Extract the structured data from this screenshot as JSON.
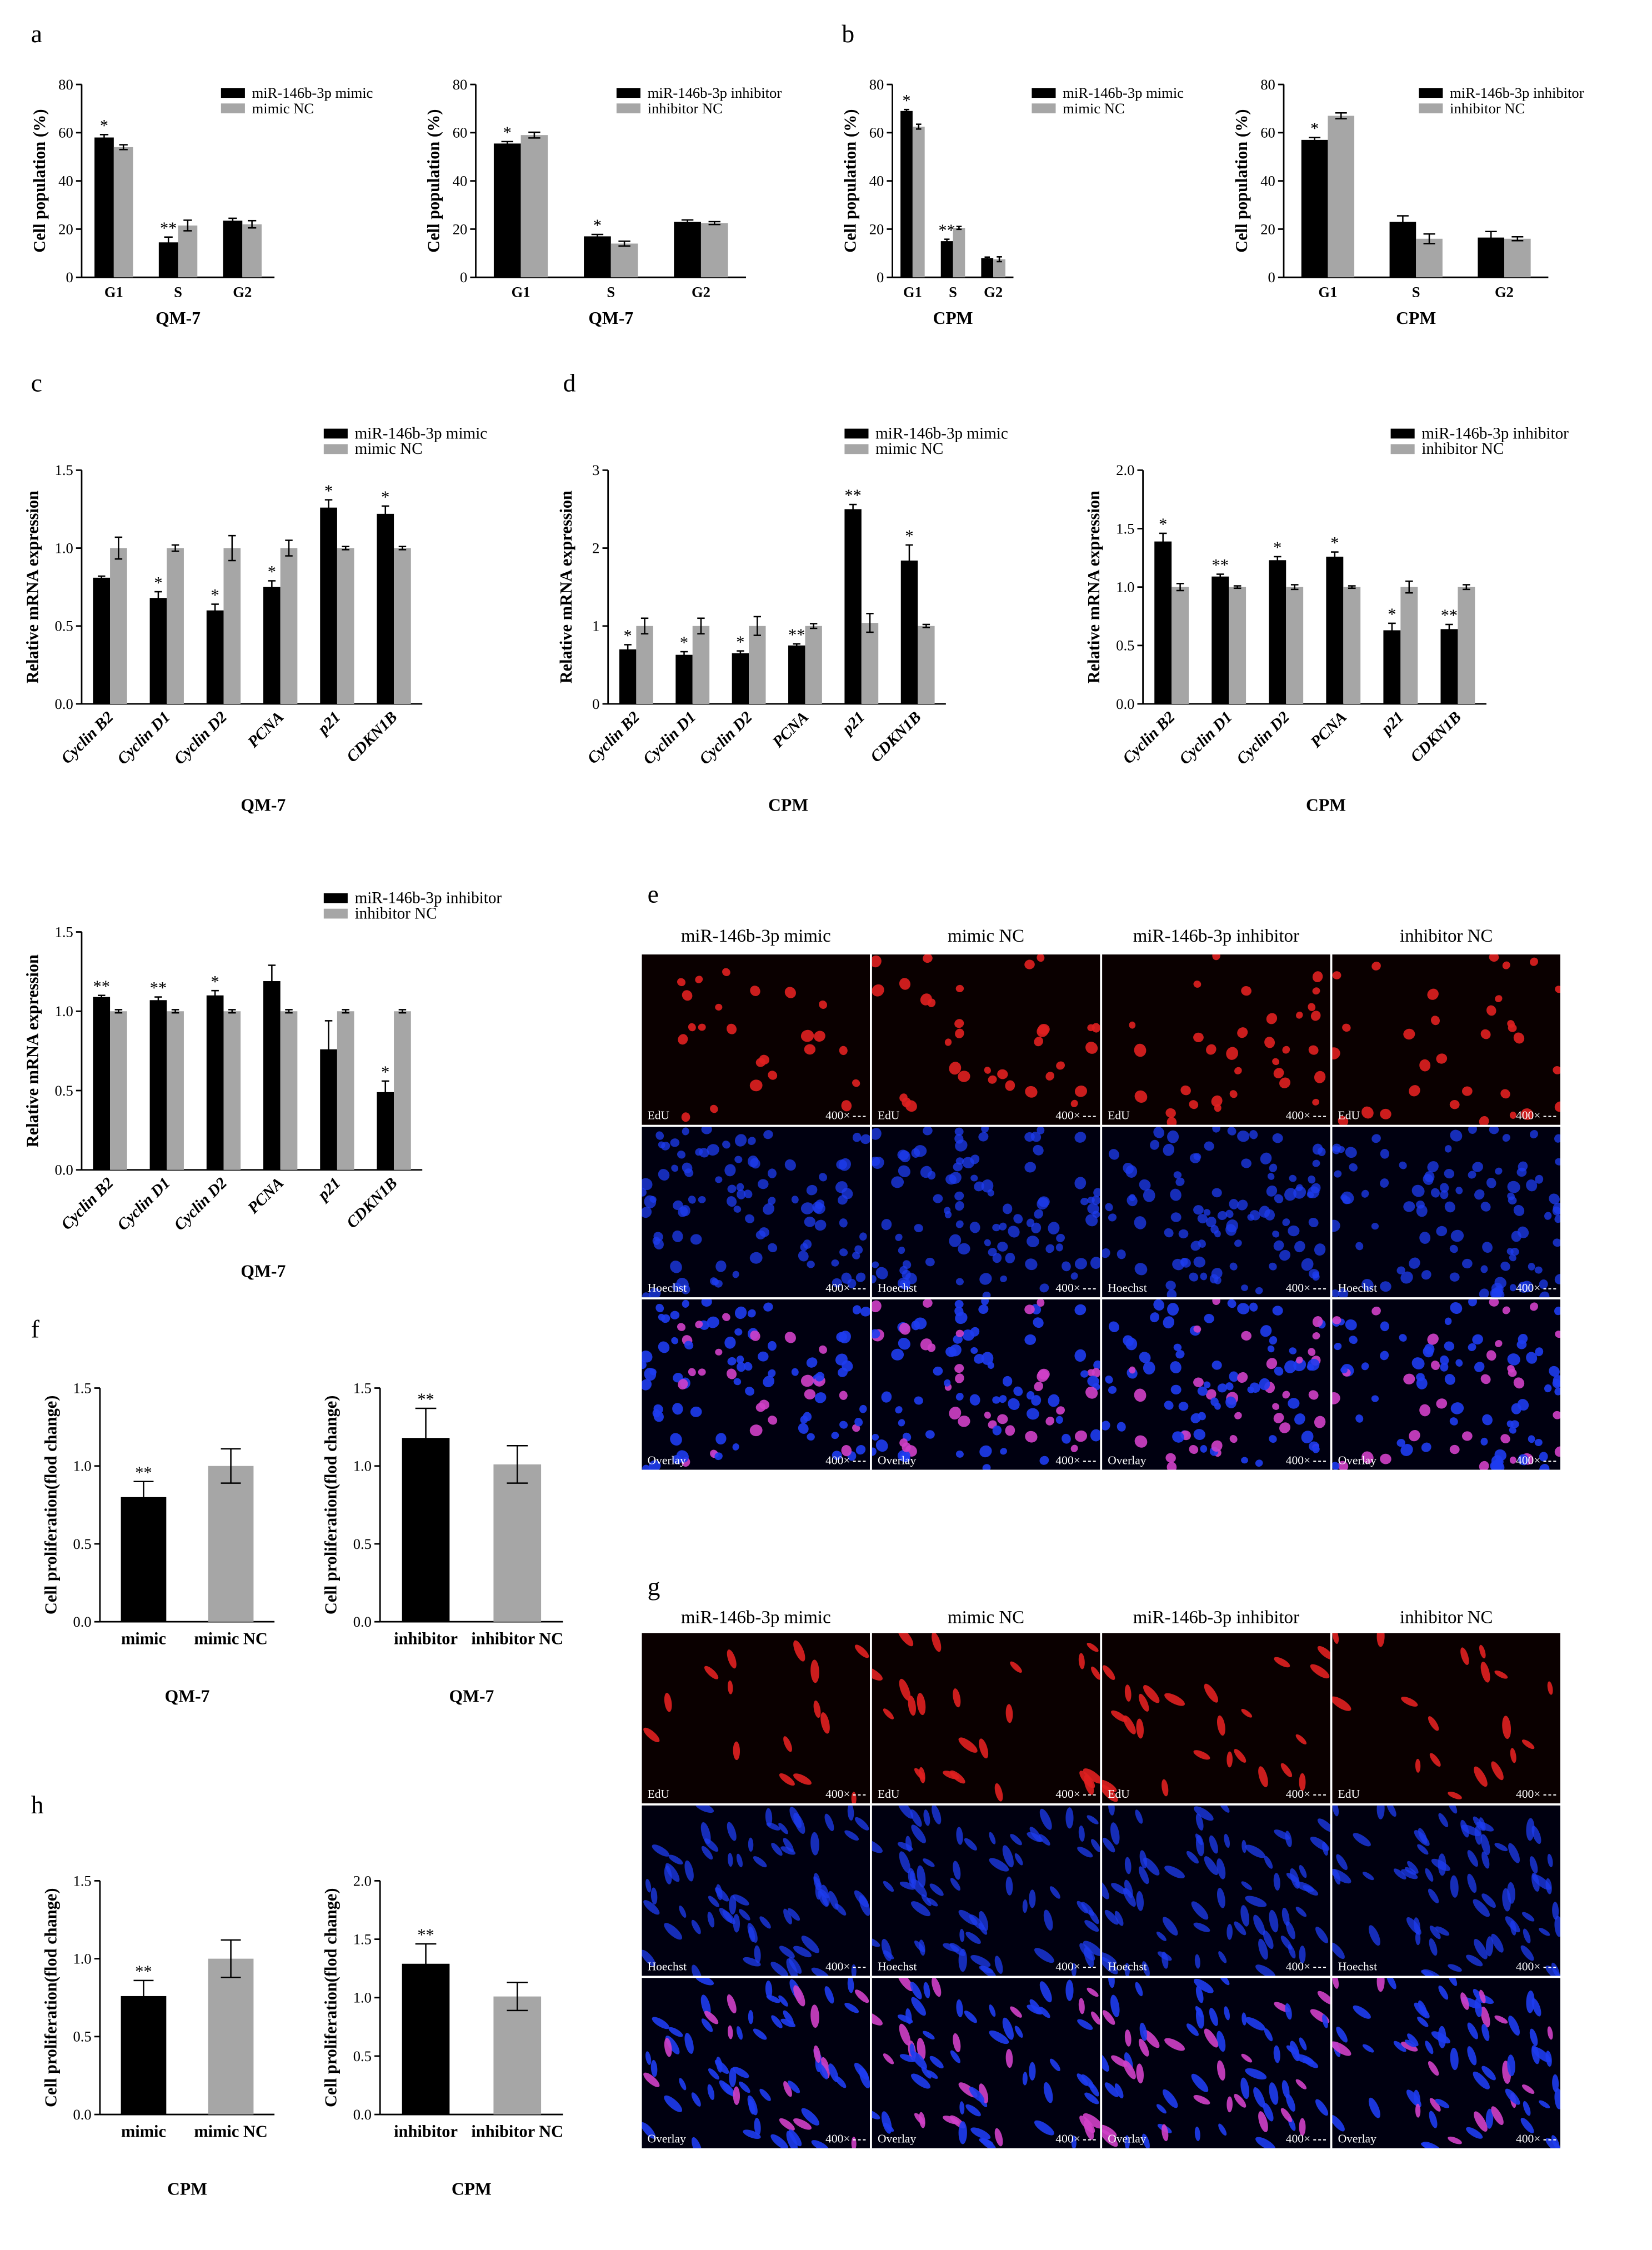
{
  "panel_labels": [
    "a",
    "b",
    "c",
    "d",
    "e",
    "f",
    "g",
    "h"
  ],
  "colors": {
    "treatment": "#000000",
    "control": "#a6a6a6",
    "axis": "#000000",
    "edu": "#e02020",
    "hoechst": "#1e3cf0",
    "overlay_nucleus": "#d040c8"
  },
  "chart_data": [
    {
      "id": "a1",
      "type": "bar",
      "ylabel": "Cell population (%)",
      "xlabel": "QM-7",
      "ylim": [
        0,
        80
      ],
      "yticks": [
        "0",
        "20",
        "40",
        "60",
        "80"
      ],
      "categories": [
        "G1",
        "S",
        "G2"
      ],
      "legend_placement": "top-right",
      "series": [
        {
          "name": "miR-146b-3p mimic",
          "color": "#000000",
          "values": [
            58,
            14.5,
            23.5
          ],
          "errors": [
            1.2,
            2.2,
            1.0
          ],
          "sig": [
            "*",
            "**",
            ""
          ]
        },
        {
          "name": "mimic NC",
          "color": "#a6a6a6",
          "values": [
            54,
            21.5,
            22
          ],
          "errors": [
            1.0,
            2.2,
            1.5
          ],
          "sig": [
            "",
            "",
            ""
          ]
        }
      ]
    },
    {
      "id": "a2",
      "type": "bar",
      "ylabel": "Cell population (%)",
      "xlabel": "QM-7",
      "ylim": [
        0,
        80
      ],
      "yticks": [
        "0",
        "20",
        "40",
        "60",
        "80"
      ],
      "categories": [
        "G1",
        "S",
        "G2"
      ],
      "legend_placement": "top-right",
      "series": [
        {
          "name": "miR-146b-3p inhibitor",
          "color": "#000000",
          "values": [
            55.5,
            17,
            23
          ],
          "errors": [
            0.8,
            0.8,
            0.8
          ],
          "sig": [
            "*",
            "*",
            ""
          ]
        },
        {
          "name": "inhibitor NC",
          "color": "#a6a6a6",
          "values": [
            59,
            14,
            22.5
          ],
          "errors": [
            1.2,
            1.0,
            0.6
          ],
          "sig": [
            "",
            "",
            ""
          ]
        }
      ]
    },
    {
      "id": "b1",
      "type": "bar",
      "ylabel": "Cell population (%)",
      "xlabel": "CPM",
      "ylim": [
        0,
        80
      ],
      "yticks": [
        "0",
        "20",
        "40",
        "60",
        "80"
      ],
      "categories": [
        "G1",
        "S",
        "G2"
      ],
      "legend_placement": "top-right",
      "series": [
        {
          "name": "miR-146b-3p mimic",
          "color": "#000000",
          "values": [
            69,
            15,
            8
          ],
          "errors": [
            0.6,
            0.8,
            0.4
          ],
          "sig": [
            "*",
            "**",
            ""
          ]
        },
        {
          "name": "mimic NC",
          "color": "#a6a6a6",
          "values": [
            62.5,
            20.5,
            7.5
          ],
          "errors": [
            1.0,
            0.6,
            1.0
          ],
          "sig": [
            "",
            "",
            ""
          ]
        }
      ]
    },
    {
      "id": "b2",
      "type": "bar",
      "ylabel": "Cell population (%)",
      "xlabel": "CPM",
      "ylim": [
        0,
        80
      ],
      "yticks": [
        "0",
        "20",
        "40",
        "60",
        "80"
      ],
      "categories": [
        "G1",
        "S",
        "G2"
      ],
      "legend_placement": "top-right",
      "series": [
        {
          "name": "miR-146b-3p inhibitor",
          "color": "#000000",
          "values": [
            57,
            23,
            16.5
          ],
          "errors": [
            1.0,
            2.5,
            2.5
          ],
          "sig": [
            "*",
            "",
            ""
          ]
        },
        {
          "name": "inhibitor NC",
          "color": "#a6a6a6",
          "values": [
            67,
            16,
            16
          ],
          "errors": [
            1.2,
            2.0,
            0.8
          ],
          "sig": [
            "",
            "",
            ""
          ]
        }
      ]
    },
    {
      "id": "c1",
      "type": "bar",
      "ylabel": "Relative mRNA expression",
      "xlabel": "QM-7",
      "ylim": [
        0,
        1.5
      ],
      "yticks": [
        "0.0",
        "0.5",
        "1.0",
        "1.5"
      ],
      "categories": [
        "Cyclin B2",
        "Cyclin D1",
        "Cyclin D2",
        "PCNA",
        "p21",
        "CDKN1B"
      ],
      "italic_categories": true,
      "legend_placement": "top-right",
      "series": [
        {
          "name": "miR-146b-3p mimic",
          "color": "#000000",
          "values": [
            0.81,
            0.68,
            0.6,
            0.75,
            1.26,
            1.22
          ],
          "errors": [
            0.01,
            0.04,
            0.04,
            0.04,
            0.05,
            0.05
          ],
          "sig": [
            "",
            "*",
            "*",
            "*",
            "*",
            "*"
          ]
        },
        {
          "name": "mimic NC",
          "color": "#a6a6a6",
          "values": [
            1.0,
            1.0,
            1.0,
            1.0,
            1.0,
            1.0
          ],
          "errors": [
            0.07,
            0.02,
            0.08,
            0.05,
            0.01,
            0.01
          ],
          "sig": [
            "",
            "",
            "",
            "",
            "",
            ""
          ]
        }
      ]
    },
    {
      "id": "c2",
      "type": "bar",
      "ylabel": "Relative mRNA expression",
      "xlabel": "QM-7",
      "ylim": [
        0,
        1.5
      ],
      "yticks": [
        "0.0",
        "0.5",
        "1.0",
        "1.5"
      ],
      "categories": [
        "Cyclin B2",
        "Cyclin D1",
        "Cyclin D2",
        "PCNA",
        "p21",
        "CDKN1B"
      ],
      "italic_categories": true,
      "legend_placement": "top-right",
      "series": [
        {
          "name": "miR-146b-3p inhibitor",
          "color": "#000000",
          "values": [
            1.09,
            1.07,
            1.1,
            1.19,
            0.76,
            0.49
          ],
          "errors": [
            0.01,
            0.02,
            0.03,
            0.1,
            0.18,
            0.07
          ],
          "sig": [
            "**",
            "**",
            "*",
            "",
            "",
            "*"
          ]
        },
        {
          "name": "inhibitor NC",
          "color": "#a6a6a6",
          "values": [
            1.0,
            1.0,
            1.0,
            1.0,
            1.0,
            1.0
          ],
          "errors": [
            0.01,
            0.01,
            0.01,
            0.01,
            0.01,
            0.01
          ],
          "sig": [
            "",
            "",
            "",
            "",
            "",
            ""
          ]
        }
      ]
    },
    {
      "id": "d1",
      "type": "bar",
      "ylabel": "Relative mRNA expression",
      "xlabel": "CPM",
      "ylim": [
        0,
        3
      ],
      "yticks": [
        "0",
        "1",
        "2",
        "3"
      ],
      "categories": [
        "Cyclin B2",
        "Cyclin D1",
        "Cyclin D2",
        "PCNA",
        "p21",
        "CDKN1B"
      ],
      "italic_categories": true,
      "legend_placement": "top-right",
      "series": [
        {
          "name": "miR-146b-3p mimic",
          "color": "#000000",
          "values": [
            0.7,
            0.63,
            0.65,
            0.75,
            2.5,
            1.84
          ],
          "errors": [
            0.06,
            0.04,
            0.03,
            0.02,
            0.06,
            0.2
          ],
          "sig": [
            "*",
            "*",
            "*",
            "**",
            "**",
            "*"
          ]
        },
        {
          "name": "mimic NC",
          "color": "#a6a6a6",
          "values": [
            1.0,
            1.0,
            1.0,
            1.0,
            1.04,
            1.0
          ],
          "errors": [
            0.1,
            0.1,
            0.12,
            0.03,
            0.12,
            0.02
          ],
          "sig": [
            "",
            "",
            "",
            "",
            "",
            ""
          ]
        }
      ]
    },
    {
      "id": "d2",
      "type": "bar",
      "ylabel": "Relative mRNA expression",
      "xlabel": "CPM",
      "ylim": [
        0,
        2
      ],
      "yticks": [
        "0.0",
        "0.5",
        "1.0",
        "1.5",
        "2.0"
      ],
      "categories": [
        "Cyclin B2",
        "Cyclin D1",
        "Cyclin D2",
        "PCNA",
        "p21",
        "CDKN1B"
      ],
      "italic_categories": true,
      "legend_placement": "top-right",
      "series": [
        {
          "name": "miR-146b-3p inhibitor",
          "color": "#000000",
          "values": [
            1.39,
            1.09,
            1.23,
            1.26,
            0.63,
            0.64
          ],
          "errors": [
            0.07,
            0.02,
            0.03,
            0.04,
            0.06,
            0.04
          ],
          "sig": [
            "*",
            "**",
            "*",
            "*",
            "*",
            "**"
          ]
        },
        {
          "name": "inhibitor NC",
          "color": "#a6a6a6",
          "values": [
            1.0,
            1.0,
            1.0,
            1.0,
            1.0,
            1.0
          ],
          "errors": [
            0.03,
            0.01,
            0.02,
            0.01,
            0.05,
            0.02
          ],
          "sig": [
            "",
            "",
            "",
            "",
            "",
            ""
          ]
        }
      ]
    },
    {
      "id": "f1",
      "type": "bar",
      "ylabel": "Cell proliferation(flod change)",
      "xlabel": "QM-7",
      "ylim": [
        0,
        1.5
      ],
      "yticks": [
        "0.0",
        "0.5",
        "1.0",
        "1.5"
      ],
      "categories": [
        "mimic",
        "mimic NC"
      ],
      "colors": [
        "#000000",
        "#a6a6a6"
      ],
      "values": [
        0.8,
        1.0
      ],
      "errors": [
        0.1,
        0.11
      ],
      "sig": [
        "**",
        ""
      ]
    },
    {
      "id": "f2",
      "type": "bar",
      "ylabel": "Cell proliferation(flod change)",
      "xlabel": "QM-7",
      "ylim": [
        0,
        1.5
      ],
      "yticks": [
        "0.0",
        "0.5",
        "1.0",
        "1.5"
      ],
      "categories": [
        "inhibitor",
        "inhibitor NC"
      ],
      "colors": [
        "#000000",
        "#a6a6a6"
      ],
      "values": [
        1.18,
        1.01
      ],
      "errors": [
        0.19,
        0.12
      ],
      "sig": [
        "**",
        ""
      ]
    },
    {
      "id": "h1",
      "type": "bar",
      "ylabel": "Cell proliferation(flod change)",
      "xlabel": "CPM",
      "ylim": [
        0,
        1.5
      ],
      "yticks": [
        "0.0",
        "0.5",
        "1.0",
        "1.5"
      ],
      "categories": [
        "mimic",
        "mimic NC"
      ],
      "colors": [
        "#000000",
        "#a6a6a6"
      ],
      "values": [
        0.76,
        1.0
      ],
      "errors": [
        0.1,
        0.12
      ],
      "sig": [
        "**",
        ""
      ]
    },
    {
      "id": "h2",
      "type": "bar",
      "ylabel": "Cell proliferation(flod change)",
      "xlabel": "CPM",
      "ylim": [
        0,
        2
      ],
      "yticks": [
        "0.0",
        "0.5",
        "1.0",
        "1.5",
        "2.0"
      ],
      "categories": [
        "inhibitor",
        "inhibitor NC"
      ],
      "colors": [
        "#000000",
        "#a6a6a6"
      ],
      "values": [
        1.29,
        1.01
      ],
      "errors": [
        0.17,
        0.12
      ],
      "sig": [
        "**",
        ""
      ]
    }
  ],
  "microscopy": [
    {
      "id": "e",
      "columns": [
        "miR-146b-3p mimic",
        "mimic NC",
        "miR-146b-3p inhibitor",
        "inhibitor NC"
      ],
      "rows": [
        "EdU",
        "Hoechst",
        "Overlay"
      ],
      "magnification": "400×",
      "cell_shape": "round"
    },
    {
      "id": "g",
      "columns": [
        "miR-146b-3p mimic",
        "mimic NC",
        "miR-146b-3p inhibitor",
        "inhibitor NC"
      ],
      "rows": [
        "EdU",
        "Hoechst",
        "Overlay"
      ],
      "magnification": "400×",
      "cell_shape": "elongated"
    }
  ]
}
